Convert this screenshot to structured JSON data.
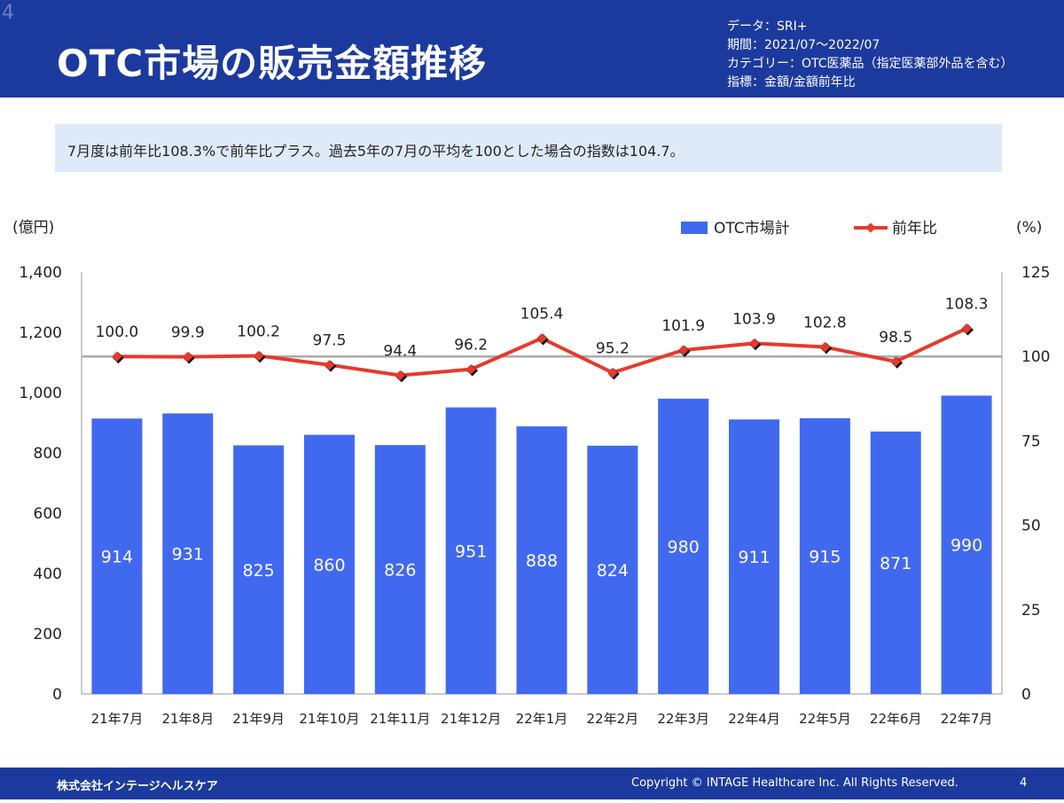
{
  "slide_number_top": "4",
  "header": {
    "title": "OTC市場の販売金額推移",
    "meta": [
      "データ：SRI+",
      "期間：2021/07〜2022/07",
      "カテゴリー：OTC医薬品（指定医薬部外品を含む）",
      "指標：金額/金額前年比"
    ]
  },
  "summary": "7月度は前年比108.3%で前年比プラス。過去5年の7月の平均を100とした場合の指数は104.7。",
  "chart_data": {
    "type": "bar",
    "categories": [
      "21年7月",
      "21年8月",
      "21年9月",
      "21年10月",
      "21年11月",
      "21年12月",
      "22年1月",
      "22年2月",
      "22年3月",
      "22年4月",
      "22年5月",
      "22年6月",
      "22年7月"
    ],
    "series": [
      {
        "name": "OTC市場計",
        "type": "bar",
        "axis": "left",
        "color": "#4169f0",
        "values": [
          914,
          931,
          825,
          860,
          826,
          951,
          888,
          824,
          980,
          911,
          915,
          871,
          990
        ]
      },
      {
        "name": "前年比",
        "type": "line",
        "axis": "right",
        "color": "#e8392b",
        "values": [
          100.0,
          99.9,
          100.2,
          97.5,
          94.4,
          96.2,
          105.4,
          95.2,
          101.9,
          103.9,
          102.8,
          98.5,
          108.3
        ]
      }
    ],
    "left_axis": {
      "unit": "(億円)",
      "ylim": [
        0,
        1400
      ],
      "ticks": [
        "0",
        "200",
        "400",
        "600",
        "800",
        "1,000",
        "1,200",
        "1,400"
      ]
    },
    "right_axis": {
      "unit": "(%)",
      "ylim": [
        0,
        125
      ],
      "ticks": [
        "0",
        "25",
        "50",
        "75",
        "100",
        "125"
      ]
    },
    "reference_line": 100,
    "legend_position": "top-right"
  },
  "footer": {
    "company": "株式会社インテージヘルスケア",
    "copyright": "Copyright © INTAGE Healthcare Inc. All Rights Reserved.",
    "page": "4"
  }
}
